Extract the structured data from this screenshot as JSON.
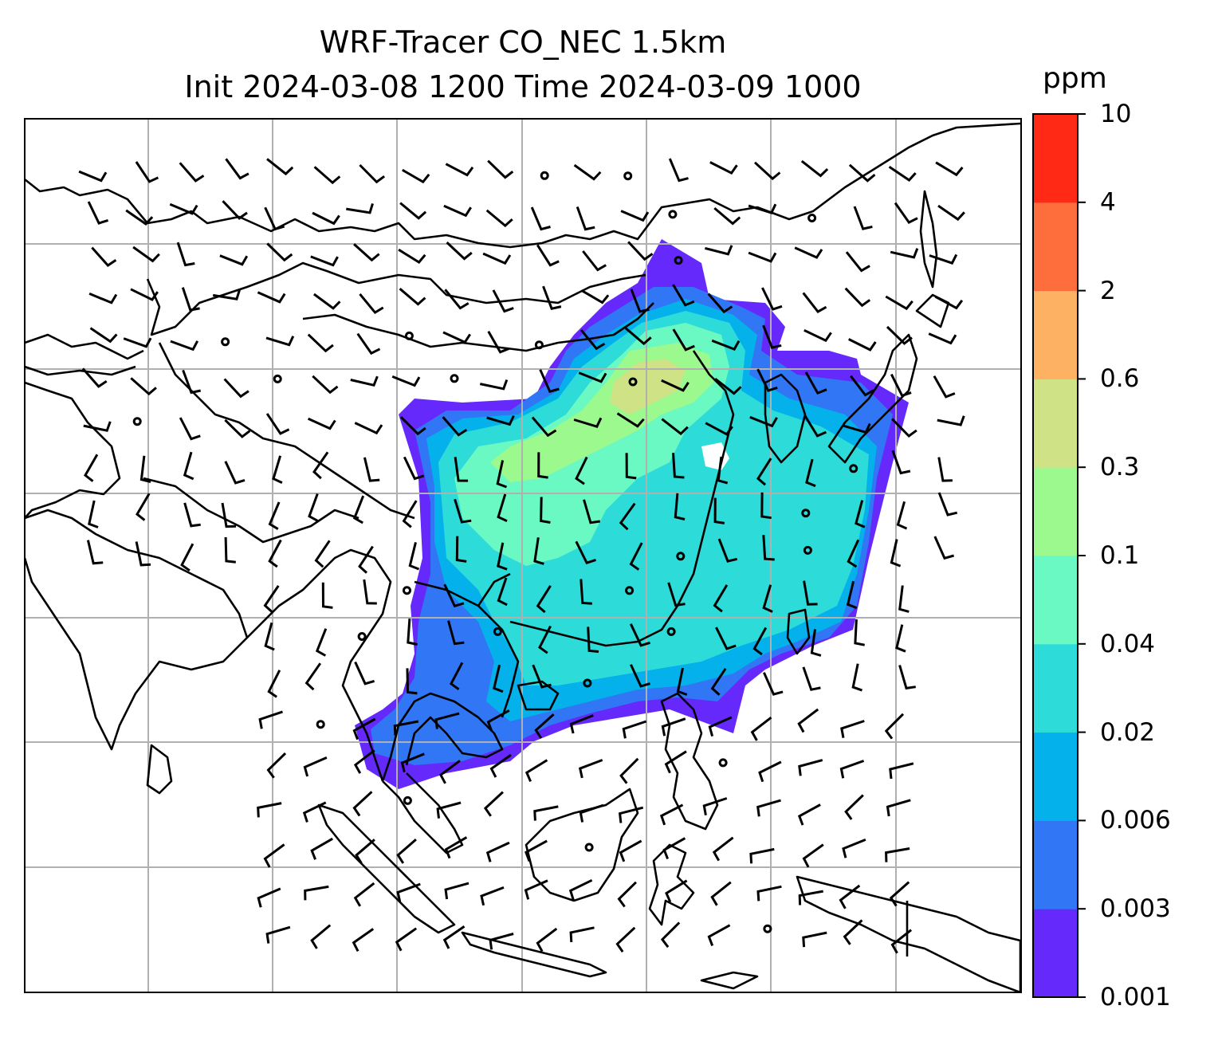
{
  "title": {
    "line1": "WRF-Tracer CO_NEC 1.5km",
    "line2": "Init 2024-03-08 1200 Time 2024-03-09 1000"
  },
  "colorbar": {
    "unit": "ppm",
    "ticks": [
      "0.001",
      "0.003",
      "0.006",
      "0.02",
      "0.04",
      "0.1",
      "0.3",
      "0.6",
      "2",
      "4",
      "10"
    ],
    "colors": [
      "#6529fb",
      "#3176f5",
      "#04b1ea",
      "#2ddbd8",
      "#6af8c3",
      "#9cf98d",
      "#cfe286",
      "#fdb163",
      "#fe6d3c",
      "#ff2916"
    ]
  },
  "map": {
    "background": "#ffffff",
    "coastline_color": "#000000",
    "grid_color": "#b0b0b0"
  }
}
